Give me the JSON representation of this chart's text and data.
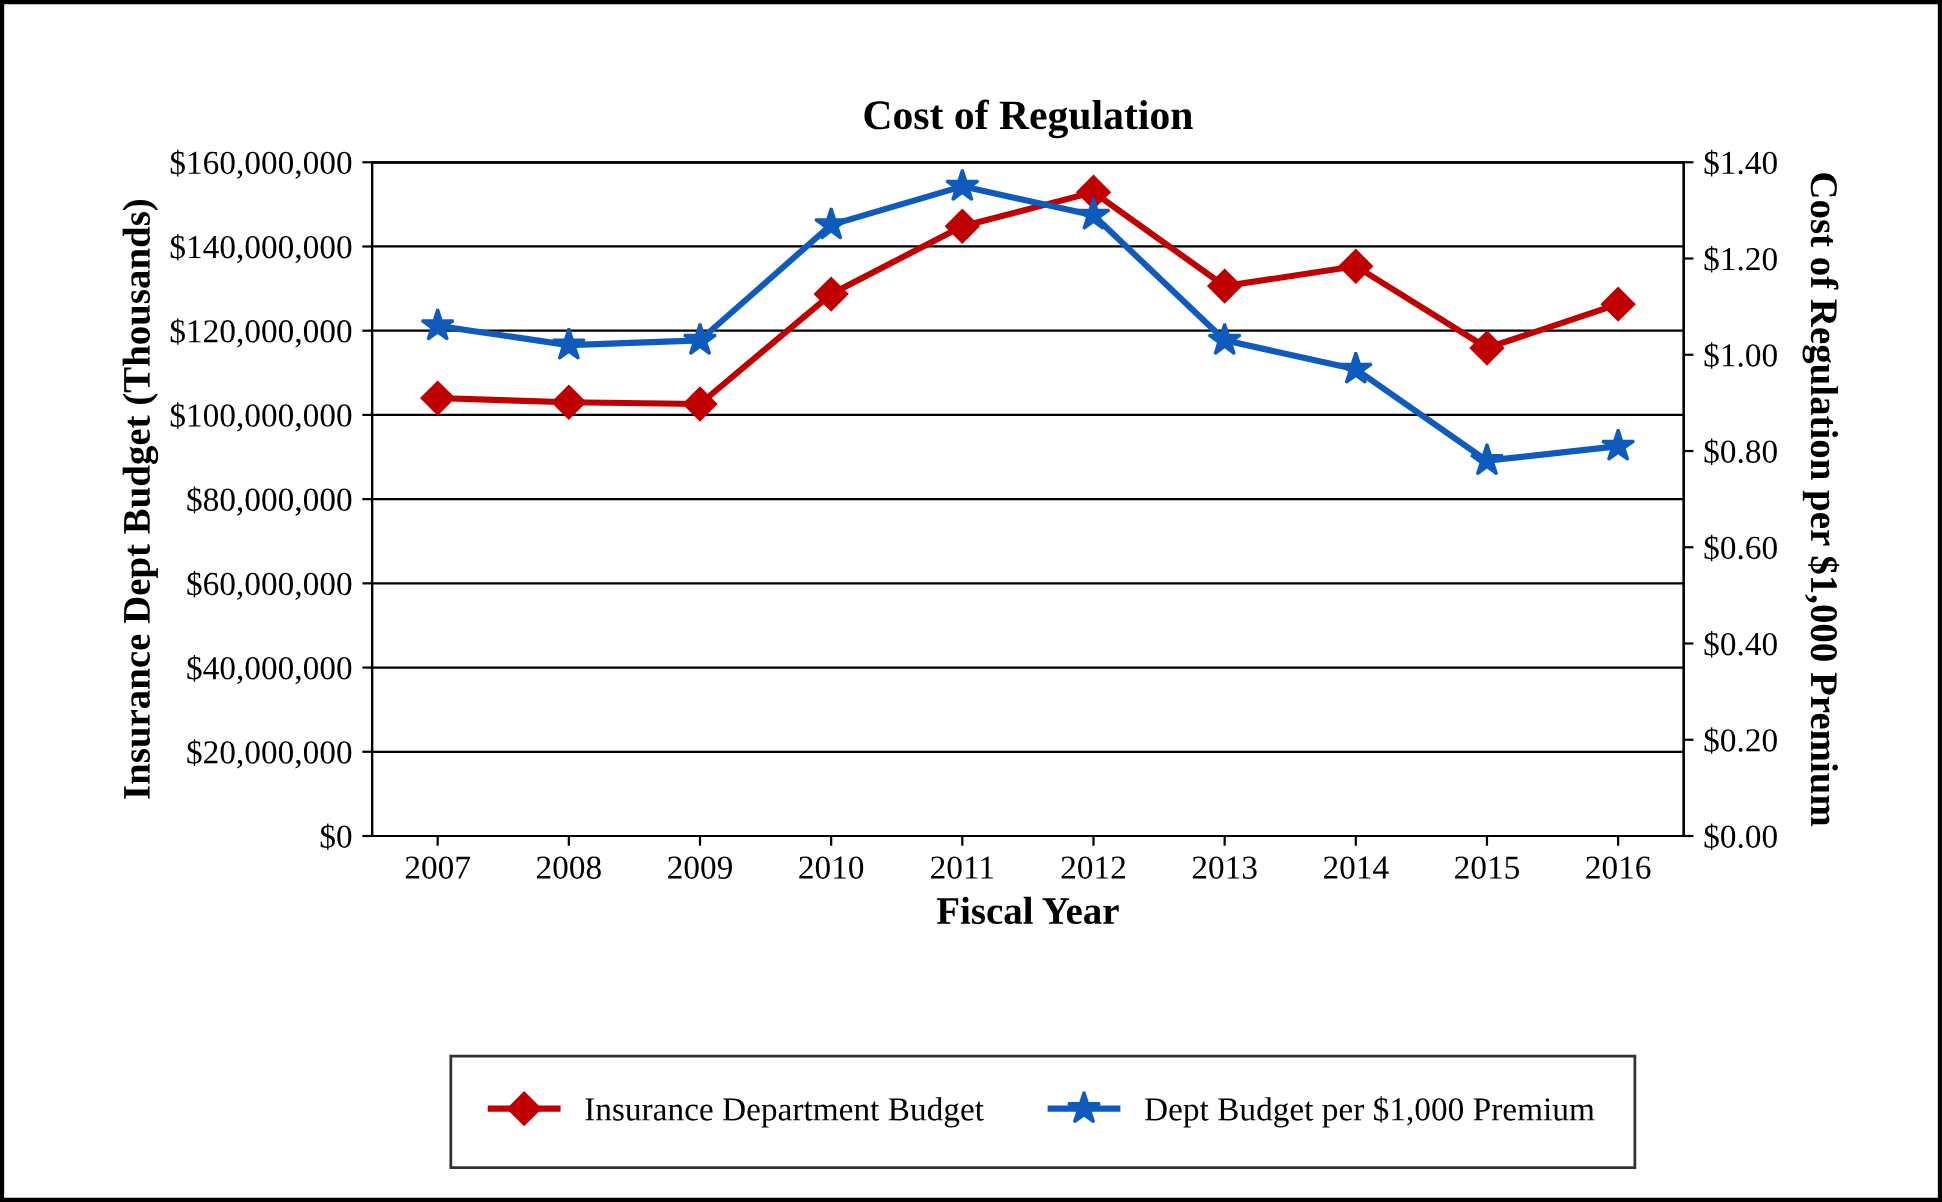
{
  "chart_data": {
    "type": "line",
    "title": "Cost of Regulation",
    "xlabel": "Fiscal Year",
    "ylabel": "Insurance Dept Budget (Thousands)",
    "y2label": "Cost of Regulation per $1,000 Premium",
    "categories": [
      "2007",
      "2008",
      "2009",
      "2010",
      "2011",
      "2012",
      "2013",
      "2014",
      "2015",
      "2016"
    ],
    "series": [
      {
        "name": "Insurance Department Budget",
        "color": "#c00000",
        "marker": "diamond",
        "values": [
          104000000,
          103000000,
          102600000,
          128700000,
          144800000,
          152900000,
          130600000,
          135300000,
          115900000,
          126300000
        ]
      },
      {
        "name": "Dept Budget per $1,000 Premium",
        "color": "#0f5bbd",
        "marker": "star",
        "axis": "y2",
        "values": [
          1.06,
          1.02,
          1.03,
          1.27,
          1.35,
          1.29,
          1.03,
          0.97,
          0.78,
          0.81
        ]
      }
    ],
    "ylim": [
      0,
      160000000
    ],
    "yticks": [
      {
        "value": 0,
        "label": "$0"
      },
      {
        "value": 20000000,
        "label": "$20,000,000"
      },
      {
        "value": 40000000,
        "label": "$40,000,000"
      },
      {
        "value": 60000000,
        "label": "$60,000,000"
      },
      {
        "value": 80000000,
        "label": "$80,000,000"
      },
      {
        "value": 100000000,
        "label": "$100,000,000"
      },
      {
        "value": 120000000,
        "label": "$120,000,000"
      },
      {
        "value": 140000000,
        "label": "$140,000,000"
      },
      {
        "value": 160000000,
        "label": "$160,000,000"
      }
    ],
    "y2lim": [
      0,
      1.4
    ],
    "y2ticks": [
      {
        "value": 0,
        "label": "$0.00"
      },
      {
        "value": 0.2,
        "label": "$0.20"
      },
      {
        "value": 0.4,
        "label": "$0.40"
      },
      {
        "value": 0.6,
        "label": "$0.60"
      },
      {
        "value": 0.8,
        "label": "$0.80"
      },
      {
        "value": 1.0,
        "label": "$1.00"
      },
      {
        "value": 1.2,
        "label": "$1.20"
      },
      {
        "value": 1.4,
        "label": "$1.40"
      }
    ],
    "grid": "y",
    "legend": "bottom",
    "line_style": "solid"
  }
}
